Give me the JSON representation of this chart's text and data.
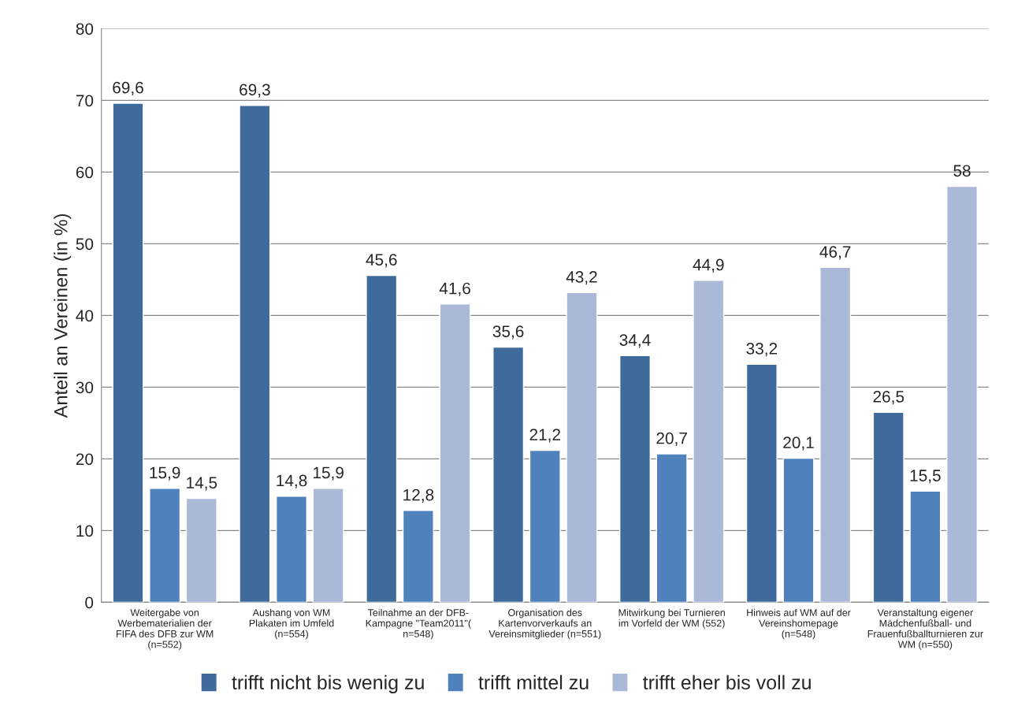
{
  "chart_data": {
    "type": "bar",
    "ylabel": "Anteil an Vereinen (in %)",
    "categories": [
      "Weitergabe von\nWerbematerialien der\nFIFA des DFB zur WM\n(n=552)",
      "Aushang von WM\nPlakaten im Umfeld\n(n=554)",
      "Teilnahme an der DFB-\nKampagne \"Team2011\"(\nn=548)",
      "Organisation des\nKartenvorverkaufs an\nVereinsmitglieder (n=551)",
      "Mitwirkung bei Turnieren\nim Vorfeld der WM (552)",
      "Hinweis auf WM auf der\nVereinshomepage\n(n=548)",
      "Veranstaltung eigener\nMädchenfußball- und\nFrauenfußballturnieren zur\nWM (n=550)"
    ],
    "series": [
      {
        "name": "trifft nicht bis wenig zu",
        "color": "#3f6a9c",
        "values": [
          69.6,
          69.3,
          45.6,
          35.6,
          34.4,
          33.2,
          26.5
        ],
        "value_labels": [
          "69,6",
          "69,3",
          "45,6",
          "35,6",
          "34,4",
          "33,2",
          "26,5"
        ]
      },
      {
        "name": "trifft mittel zu",
        "color": "#4f81bd",
        "values": [
          15.9,
          14.8,
          12.8,
          21.2,
          20.7,
          20.1,
          15.5
        ],
        "value_labels": [
          "15,9",
          "14,8",
          "12,8",
          "21,2",
          "20,7",
          "20,1",
          "15,5"
        ]
      },
      {
        "name": "trifft eher bis voll zu",
        "color": "#aab9d8",
        "values": [
          14.5,
          15.9,
          41.6,
          43.2,
          44.9,
          46.7,
          58
        ],
        "value_labels": [
          "14,5",
          "15,9",
          "41,6",
          "43,2",
          "44,9",
          "46,7",
          "58"
        ]
      }
    ],
    "ylim": [
      0,
      80
    ],
    "yticks": [
      0,
      10,
      20,
      30,
      40,
      50,
      60,
      70,
      80
    ],
    "grid": "y",
    "legend": "bottom"
  }
}
